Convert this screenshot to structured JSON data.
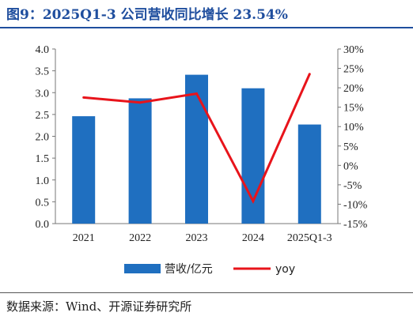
{
  "title": "图9：2025Q1-3 公司营收同比增长 23.54%",
  "source": "数据来源：Wind、开源证券研究所",
  "chart_data": {
    "type": "bar",
    "categories": [
      "2021",
      "2022",
      "2023",
      "2024",
      "2025Q1-3"
    ],
    "series": [
      {
        "name": "营收/亿元",
        "type": "bar",
        "axis": "left",
        "color": "#1f6fc0",
        "values": [
          2.46,
          2.87,
          3.41,
          3.1,
          2.27
        ]
      },
      {
        "name": "yoy",
        "type": "line",
        "axis": "right",
        "color": "#e8141b",
        "values": [
          17.5,
          16.2,
          18.5,
          -9.2,
          23.54
        ]
      }
    ],
    "y_left": {
      "min": 0,
      "max": 4,
      "ticks": [
        "0.0",
        "0.5",
        "1.0",
        "1.5",
        "2.0",
        "2.5",
        "3.0",
        "3.5",
        "4.0"
      ]
    },
    "y_right": {
      "min": -15,
      "max": 30,
      "ticks": [
        "-15%",
        "-10%",
        "-5%",
        "0%",
        "5%",
        "10%",
        "15%",
        "20%",
        "25%",
        "30%"
      ]
    },
    "grid": false,
    "legend_position": "bottom"
  }
}
